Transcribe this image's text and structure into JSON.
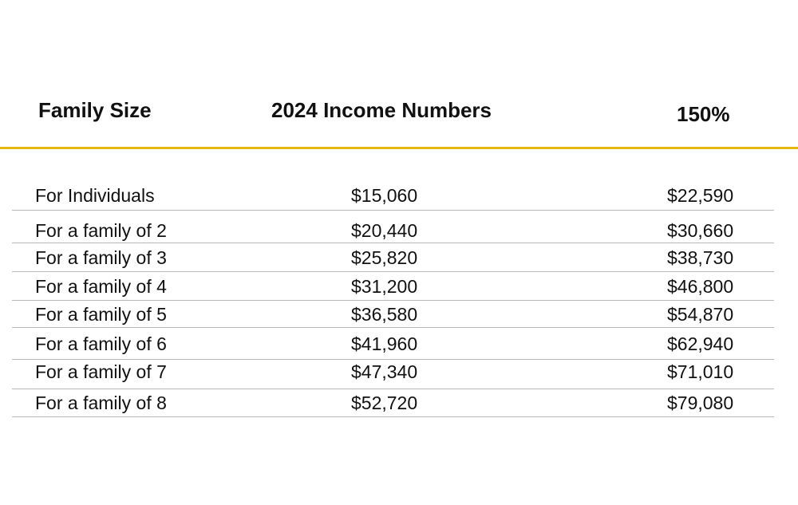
{
  "colors": {
    "accent": "#e3b80f"
  },
  "headers": [
    "Family Size",
    "2024 Income Numbers",
    "150%"
  ],
  "rows": [
    [
      "For Individuals",
      "$15,060",
      "$22,590"
    ],
    [
      "For a family of 2",
      "$20,440",
      "$30,660"
    ],
    [
      "For a family of 3",
      "$25,820",
      "$38,730"
    ],
    [
      "For a family of 4",
      "$31,200",
      "$46,800"
    ],
    [
      "For a family of 5",
      "$36,580",
      "$54,870"
    ],
    [
      "For a family of 6",
      "$41,960",
      "$62,940"
    ],
    [
      "For a family of 7",
      "$47,340",
      "$71,010"
    ],
    [
      "For a family of 8",
      "$52,720",
      "$79,080"
    ]
  ]
}
